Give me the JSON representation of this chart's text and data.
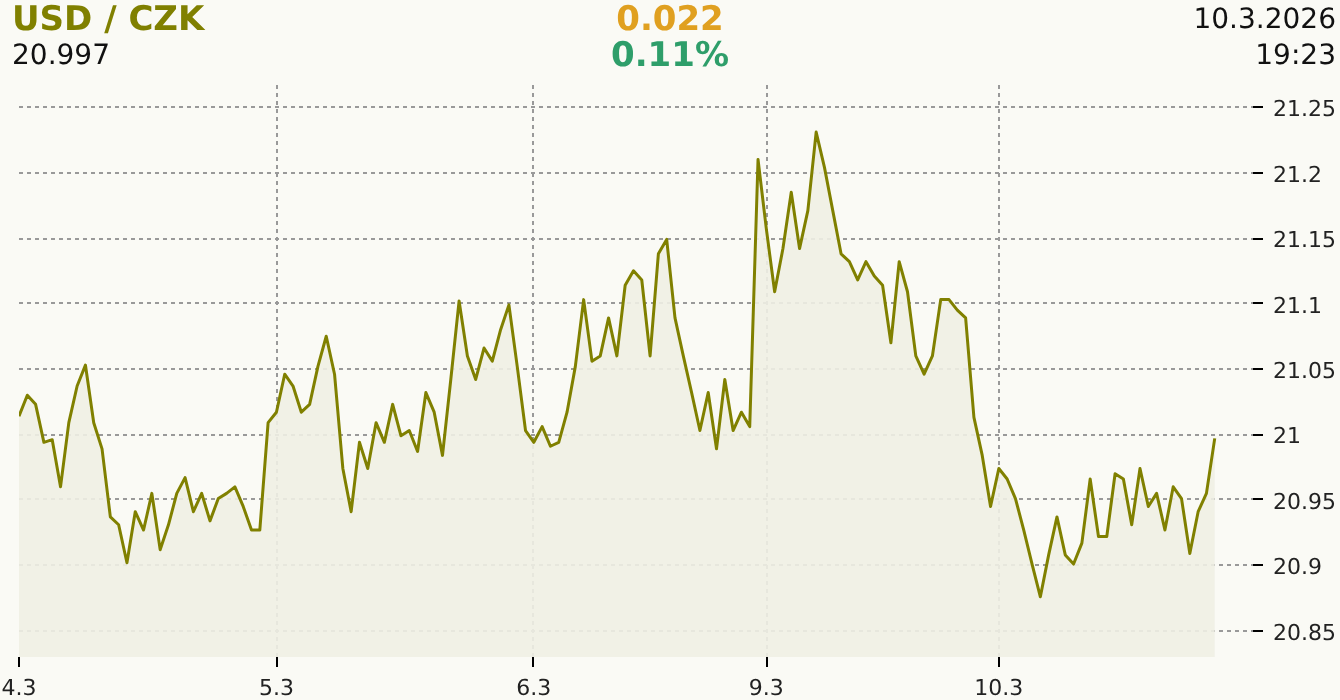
{
  "chart_data": {
    "type": "area",
    "title": "USD / CZK",
    "annotations": [
      "0.022",
      "0.11%",
      "20.997",
      "10.3.2026",
      "19:23"
    ],
    "ylim": [
      20.83,
      21.27
    ],
    "yticks": [
      20.85,
      20.9,
      20.95,
      21,
      21.05,
      21.1,
      21.15,
      21.2,
      21.25
    ],
    "grid": true,
    "line_style": "solid",
    "categories": [
      "4.3",
      null,
      null,
      null,
      null,
      null,
      null,
      null,
      null,
      null,
      null,
      null,
      null,
      null,
      null,
      null,
      null,
      null,
      null,
      null,
      null,
      null,
      null,
      null,
      null,
      null,
      null,
      null,
      null,
      null,
      null,
      "5.3",
      null,
      null,
      null,
      null,
      null,
      null,
      null,
      null,
      null,
      null,
      null,
      null,
      null,
      null,
      null,
      null,
      null,
      null,
      null,
      null,
      null,
      null,
      null,
      null,
      null,
      null,
      null,
      null,
      null,
      null,
      "6.3",
      null,
      null,
      null,
      null,
      null,
      null,
      null,
      null,
      null,
      null,
      null,
      null,
      null,
      null,
      null,
      null,
      null,
      null,
      null,
      null,
      null,
      null,
      null,
      null,
      null,
      null,
      null,
      "9.3",
      null,
      null,
      null,
      null,
      null,
      null,
      null,
      null,
      null,
      null,
      null,
      null,
      null,
      null,
      null,
      null,
      null,
      null,
      null,
      null,
      null,
      null,
      null,
      null,
      null,
      null,
      null,
      "10.3",
      null,
      null,
      null,
      null,
      null,
      null,
      null,
      null,
      null,
      null,
      null,
      null,
      null,
      null,
      null,
      null,
      null,
      null,
      null,
      null,
      null,
      null,
      null,
      null,
      null,
      null
    ],
    "series": [
      {
        "color": "#808000",
        "values": [
          21.014,
          21.03,
          21.023,
          20.994,
          20.996,
          20.96,
          21.009,
          21.037,
          21.053,
          21.009,
          20.989,
          20.937,
          20.931,
          20.902,
          20.941,
          20.927,
          20.955,
          20.912,
          20.931,
          20.955,
          20.967,
          20.941,
          20.955,
          20.934,
          20.951,
          20.955,
          20.96,
          20.945,
          20.927,
          20.927,
          21.009,
          21.017,
          21.046,
          21.037,
          21.017,
          21.023,
          21.052,
          21.075,
          21.046,
          20.974,
          20.941,
          20.994,
          20.974,
          21.009,
          20.994,
          21.023,
          20.999,
          21.003,
          20.987,
          21.032,
          21.017,
          20.984,
          21.042,
          21.102,
          21.06,
          21.042,
          21.066,
          21.056,
          21.08,
          21.099,
          21.052,
          21.003,
          20.994,
          21.006,
          20.991,
          20.994,
          21.017,
          21.052,
          21.103,
          21.056,
          21.06,
          21.089,
          21.06,
          21.114,
          21.125,
          21.118,
          21.06,
          21.138,
          21.149,
          21.089,
          21.06,
          21.032,
          21.003,
          21.032,
          20.989,
          21.042,
          21.003,
          21.017,
          21.006,
          21.21,
          21.157,
          21.109,
          21.142,
          21.185,
          21.142,
          21.171,
          21.231,
          21.204,
          21.171,
          21.138,
          21.132,
          21.118,
          21.132,
          21.121,
          21.114,
          21.07,
          21.132,
          21.109,
          21.06,
          21.046,
          21.06,
          21.103,
          21.103,
          21.095,
          21.089,
          21.013,
          20.984,
          20.945,
          20.974,
          20.966,
          20.951,
          20.927,
          20.901,
          20.876,
          20.908,
          20.937,
          20.908,
          20.901,
          20.917,
          20.966,
          20.922,
          20.922,
          20.97,
          20.966,
          20.931,
          20.974,
          20.945,
          20.955,
          20.927,
          20.96,
          20.951,
          20.909,
          20.941,
          20.955,
          20.997
        ]
      }
    ]
  }
}
